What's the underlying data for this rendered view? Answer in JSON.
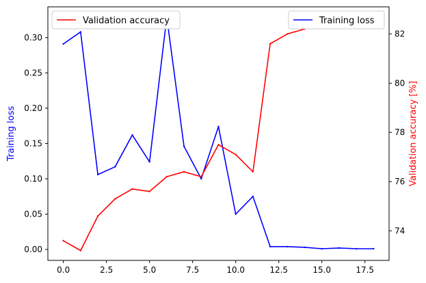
{
  "chart_data": {
    "type": "line",
    "xlabel": "",
    "x": [
      0,
      1,
      2,
      3,
      4,
      5,
      6,
      7,
      8,
      9,
      10,
      11,
      12,
      13,
      14,
      15,
      16,
      17,
      18
    ],
    "xlim": [
      -0.9,
      18.9
    ],
    "xticks": [
      0.0,
      2.5,
      5.0,
      7.5,
      10.0,
      12.5,
      15.0,
      17.5
    ],
    "xtick_labels": [
      "0.0",
      "2.5",
      "5.0",
      "7.5",
      "10.0",
      "12.5",
      "15.0",
      "17.5"
    ],
    "left_axis": {
      "label": "Training loss",
      "color": "#0000ff",
      "ylim": [
        -0.0155,
        0.3435
      ],
      "ticks": [
        0.0,
        0.05,
        0.1,
        0.15,
        0.2,
        0.25,
        0.3
      ],
      "tick_labels": [
        "0.00",
        "0.05",
        "0.10",
        "0.15",
        "0.20",
        "0.25",
        "0.30"
      ]
    },
    "right_axis": {
      "label": "Validation accuracy [%]",
      "color": "#ff0000",
      "ylim": [
        72.8,
        83.1
      ],
      "ticks": [
        74,
        76,
        78,
        80,
        82
      ],
      "tick_labels": [
        "74",
        "76",
        "78",
        "80",
        "82"
      ]
    },
    "series": [
      {
        "name": "Training loss",
        "axis": "left",
        "color": "#0000ff",
        "values": [
          0.291,
          0.308,
          0.106,
          0.117,
          0.162,
          0.124,
          0.329,
          0.146,
          0.1,
          0.174,
          0.05,
          0.075,
          0.004,
          0.004,
          0.003,
          0.001,
          0.002,
          0.001,
          0.001
        ]
      },
      {
        "name": "Validation accuracy",
        "axis": "right",
        "color": "#ff0000",
        "values": [
          73.6,
          73.2,
          74.6,
          75.3,
          75.7,
          75.6,
          76.2,
          76.4,
          76.2,
          77.5,
          77.1,
          76.4,
          81.6,
          82.0,
          82.2,
          82.5,
          82.7,
          82.8,
          82.8
        ]
      }
    ],
    "legends": [
      {
        "position": "top-left",
        "series": "Validation accuracy"
      },
      {
        "position": "top-right",
        "series": "Training loss"
      }
    ],
    "grid": false
  }
}
